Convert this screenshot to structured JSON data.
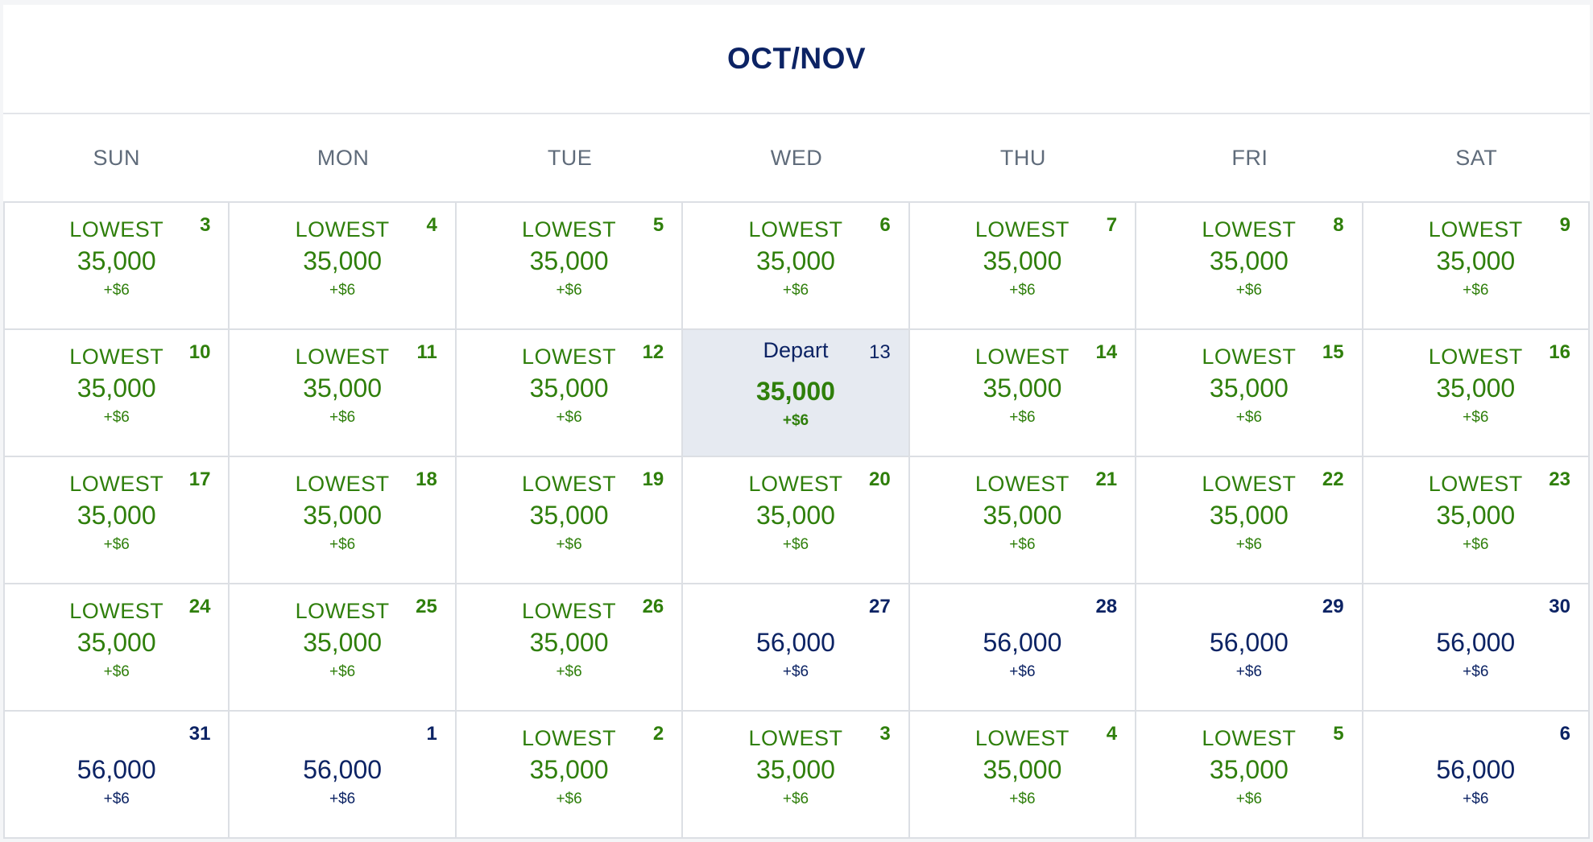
{
  "calendar": {
    "title": "OCT/NOV",
    "weekdays": [
      "SUN",
      "MON",
      "TUE",
      "WED",
      "THU",
      "FRI",
      "SAT"
    ],
    "days": [
      {
        "day": "3",
        "badge": "LOWEST",
        "miles": "35,000",
        "fee": "+$6",
        "type": "lowest"
      },
      {
        "day": "4",
        "badge": "LOWEST",
        "miles": "35,000",
        "fee": "+$6",
        "type": "lowest"
      },
      {
        "day": "5",
        "badge": "LOWEST",
        "miles": "35,000",
        "fee": "+$6",
        "type": "lowest"
      },
      {
        "day": "6",
        "badge": "LOWEST",
        "miles": "35,000",
        "fee": "+$6",
        "type": "lowest"
      },
      {
        "day": "7",
        "badge": "LOWEST",
        "miles": "35,000",
        "fee": "+$6",
        "type": "lowest"
      },
      {
        "day": "8",
        "badge": "LOWEST",
        "miles": "35,000",
        "fee": "+$6",
        "type": "lowest"
      },
      {
        "day": "9",
        "badge": "LOWEST",
        "miles": "35,000",
        "fee": "+$6",
        "type": "lowest"
      },
      {
        "day": "10",
        "badge": "LOWEST",
        "miles": "35,000",
        "fee": "+$6",
        "type": "lowest"
      },
      {
        "day": "11",
        "badge": "LOWEST",
        "miles": "35,000",
        "fee": "+$6",
        "type": "lowest"
      },
      {
        "day": "12",
        "badge": "LOWEST",
        "miles": "35,000",
        "fee": "+$6",
        "type": "lowest"
      },
      {
        "day": "13",
        "badge": "Depart",
        "miles": "35,000",
        "fee": "+$6",
        "type": "selected"
      },
      {
        "day": "14",
        "badge": "LOWEST",
        "miles": "35,000",
        "fee": "+$6",
        "type": "lowest"
      },
      {
        "day": "15",
        "badge": "LOWEST",
        "miles": "35,000",
        "fee": "+$6",
        "type": "lowest"
      },
      {
        "day": "16",
        "badge": "LOWEST",
        "miles": "35,000",
        "fee": "+$6",
        "type": "lowest"
      },
      {
        "day": "17",
        "badge": "LOWEST",
        "miles": "35,000",
        "fee": "+$6",
        "type": "lowest"
      },
      {
        "day": "18",
        "badge": "LOWEST",
        "miles": "35,000",
        "fee": "+$6",
        "type": "lowest"
      },
      {
        "day": "19",
        "badge": "LOWEST",
        "miles": "35,000",
        "fee": "+$6",
        "type": "lowest"
      },
      {
        "day": "20",
        "badge": "LOWEST",
        "miles": "35,000",
        "fee": "+$6",
        "type": "lowest"
      },
      {
        "day": "21",
        "badge": "LOWEST",
        "miles": "35,000",
        "fee": "+$6",
        "type": "lowest"
      },
      {
        "day": "22",
        "badge": "LOWEST",
        "miles": "35,000",
        "fee": "+$6",
        "type": "lowest"
      },
      {
        "day": "23",
        "badge": "LOWEST",
        "miles": "35,000",
        "fee": "+$6",
        "type": "lowest"
      },
      {
        "day": "24",
        "badge": "LOWEST",
        "miles": "35,000",
        "fee": "+$6",
        "type": "lowest"
      },
      {
        "day": "25",
        "badge": "LOWEST",
        "miles": "35,000",
        "fee": "+$6",
        "type": "lowest"
      },
      {
        "day": "26",
        "badge": "LOWEST",
        "miles": "35,000",
        "fee": "+$6",
        "type": "lowest"
      },
      {
        "day": "27",
        "badge": "",
        "miles": "56,000",
        "fee": "+$6",
        "type": "regular"
      },
      {
        "day": "28",
        "badge": "",
        "miles": "56,000",
        "fee": "+$6",
        "type": "regular"
      },
      {
        "day": "29",
        "badge": "",
        "miles": "56,000",
        "fee": "+$6",
        "type": "regular"
      },
      {
        "day": "30",
        "badge": "",
        "miles": "56,000",
        "fee": "+$6",
        "type": "regular"
      },
      {
        "day": "31",
        "badge": "",
        "miles": "56,000",
        "fee": "+$6",
        "type": "regular"
      },
      {
        "day": "1",
        "badge": "",
        "miles": "56,000",
        "fee": "+$6",
        "type": "regular"
      },
      {
        "day": "2",
        "badge": "LOWEST",
        "miles": "35,000",
        "fee": "+$6",
        "type": "lowest"
      },
      {
        "day": "3",
        "badge": "LOWEST",
        "miles": "35,000",
        "fee": "+$6",
        "type": "lowest"
      },
      {
        "day": "4",
        "badge": "LOWEST",
        "miles": "35,000",
        "fee": "+$6",
        "type": "lowest"
      },
      {
        "day": "5",
        "badge": "LOWEST",
        "miles": "35,000",
        "fee": "+$6",
        "type": "lowest"
      },
      {
        "day": "6",
        "badge": "",
        "miles": "56,000",
        "fee": "+$6",
        "type": "regular"
      }
    ]
  },
  "colors": {
    "lowest": "#2f7f0b",
    "regular": "#0c2364",
    "selected_background": "#e6eaf1"
  }
}
